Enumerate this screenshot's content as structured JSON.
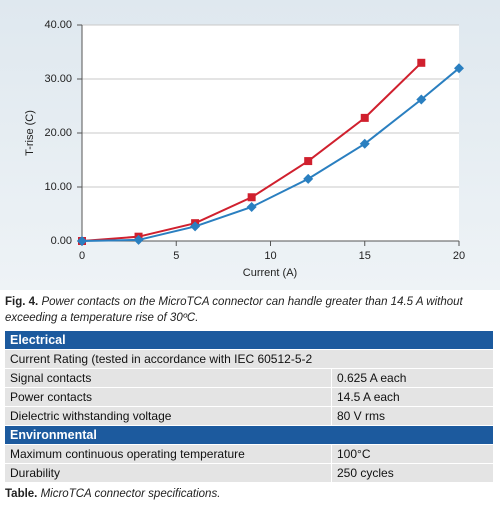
{
  "chart_data": {
    "type": "line",
    "x": [
      0,
      3,
      6,
      9,
      12,
      15,
      18,
      20
    ],
    "series": [
      {
        "color": "#d0202e",
        "marker": "square",
        "values": [
          0,
          0.8,
          3.3,
          8.1,
          14.8,
          22.8,
          33.0,
          null
        ]
      },
      {
        "color": "#2a7fc0",
        "marker": "diamond",
        "values": [
          0,
          0.2,
          2.7,
          6.3,
          11.5,
          18.0,
          26.2,
          32.0
        ]
      }
    ],
    "xlabel": "Current (A)",
    "ylabel": "T-rise (C)",
    "xlim": [
      0,
      20
    ],
    "ylim": [
      0,
      40
    ],
    "xticks": [
      0,
      5,
      10,
      15,
      20
    ],
    "yticks": [
      {
        "value": 0,
        "label": "0.00"
      },
      {
        "value": 10,
        "label": "10.00"
      },
      {
        "value": 20,
        "label": "20.00"
      },
      {
        "value": 30,
        "label": "30.00"
      },
      {
        "value": 40,
        "label": "40.00"
      }
    ],
    "grid": true
  },
  "caption": {
    "label": "Fig. 4.",
    "text": "Power contacts on the MicroTCA connector can handle greater than 14.5 A without exceeding a temperature rise of 30ºC."
  },
  "table": {
    "sections": [
      {
        "title": "Electrical",
        "rows": [
          [
            "Current Rating (tested in accordance with IEC 60512-5-2"
          ],
          [
            "Signal contacts",
            "0.625 A each"
          ],
          [
            "Power contacts",
            "14.5 A each"
          ],
          [
            "Dielectric withstanding voltage",
            "80 V rms"
          ]
        ]
      },
      {
        "title": "Environmental",
        "rows": [
          [
            "Maximum continuous operating temperature",
            "100°C"
          ],
          [
            "Durability",
            "250 cycles"
          ]
        ]
      }
    ]
  },
  "table_caption": {
    "label": "Table.",
    "text": "MicroTCA connector specifications."
  }
}
